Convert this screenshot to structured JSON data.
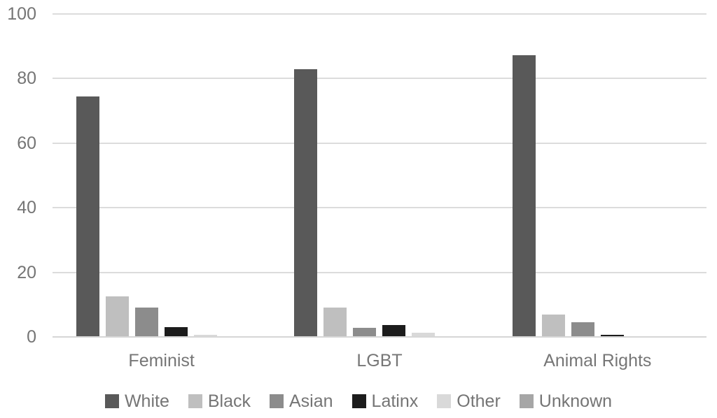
{
  "chart_data": {
    "type": "bar",
    "title": "",
    "xlabel": "",
    "ylabel": "",
    "categories": [
      "Feminist",
      "LGBT",
      "Animal Rights"
    ],
    "series": [
      {
        "name": "White",
        "color": "#595959",
        "values": [
          74.4,
          82.8,
          87.3
        ]
      },
      {
        "name": "Black",
        "color": "#bfbfbf",
        "values": [
          12.6,
          9.0,
          7.0
        ]
      },
      {
        "name": "Asian",
        "color": "#8c8c8c",
        "values": [
          9.0,
          2.9,
          4.5
        ]
      },
      {
        "name": "Latinx",
        "color": "#1c1c1c",
        "values": [
          3.0,
          3.6,
          0.7
        ]
      },
      {
        "name": "Other",
        "color": "#d9d9d9",
        "values": [
          0.7,
          1.3,
          0
        ]
      },
      {
        "name": "Unknown",
        "color": "#a6a6a6",
        "values": [
          0,
          0,
          0
        ]
      }
    ],
    "ylim": [
      0,
      100
    ],
    "yticks": [
      0,
      20,
      40,
      60,
      80,
      100
    ],
    "grid": true,
    "legend_position": "bottom"
  },
  "style": {
    "grid_color": "#dcdcdc",
    "axis_color": "#d6d6d6",
    "text_color": "#757575",
    "background": "#ffffff"
  }
}
